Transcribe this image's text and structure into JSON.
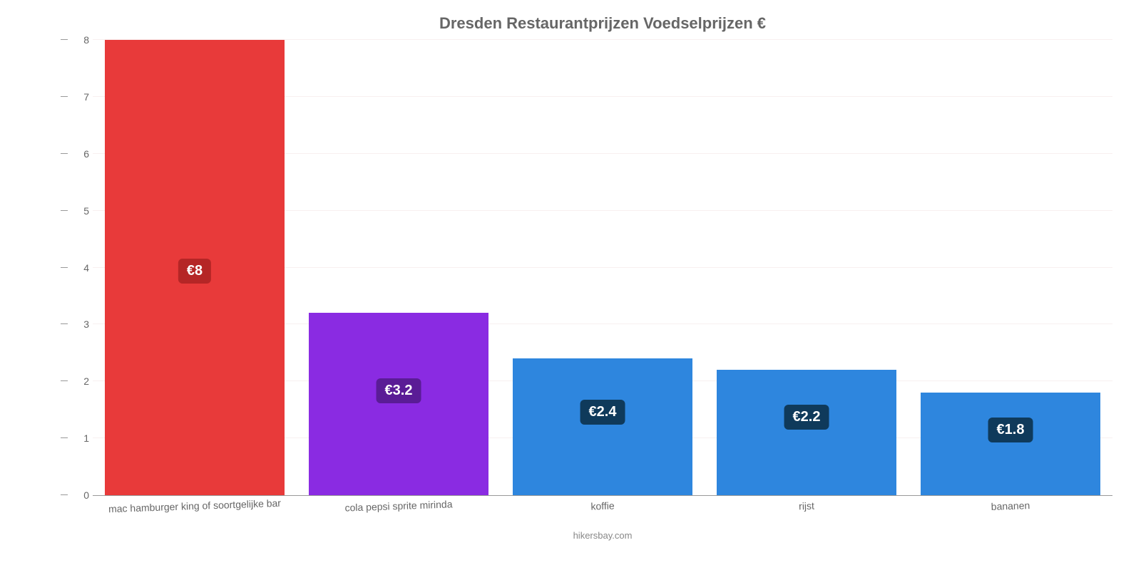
{
  "chart": {
    "type": "bar",
    "title": "Dresden Restaurantprijzen Voedselprijzen €",
    "title_color": "#666666",
    "title_fontsize": 22,
    "background_color": "#ffffff",
    "grid_color": "#f8f0f0",
    "axis_color": "#999999",
    "y_axis": {
      "min": 0,
      "max": 8,
      "ticks": [
        0,
        1,
        2,
        3,
        4,
        5,
        6,
        7,
        8
      ],
      "tick_fontsize": 14,
      "tick_color": "#666666"
    },
    "x_axis": {
      "label_fontsize": 14,
      "label_color": "#666666",
      "label_rotation_deg": -2
    },
    "bars": [
      {
        "category": "mac hamburger king of soortgelijke bar",
        "value": 8,
        "display_label": "€8",
        "color": "#e83a3a",
        "label_bg": "#b52626",
        "label_offset_from_top_pct": 48
      },
      {
        "category": "cola pepsi sprite mirinda",
        "value": 3.2,
        "display_label": "€3.2",
        "color": "#8a2be2",
        "label_bg": "#5a1c96",
        "label_offset_from_top_pct": 36
      },
      {
        "category": "koffie",
        "value": 2.4,
        "display_label": "€2.4",
        "color": "#2e86de",
        "label_bg": "#0f3a5b",
        "label_offset_from_top_pct": 30
      },
      {
        "category": "rijst",
        "value": 2.2,
        "display_label": "€2.2",
        "color": "#2e86de",
        "label_bg": "#0f3a5b",
        "label_offset_from_top_pct": 28
      },
      {
        "category": "bananen",
        "value": 1.8,
        "display_label": "€1.8",
        "color": "#2e86de",
        "label_bg": "#0f3a5b",
        "label_offset_from_top_pct": 24
      }
    ],
    "bar_width_pct": 88,
    "value_label": {
      "fontsize": 20,
      "text_color": "#ffffff",
      "border_radius": 6
    },
    "attribution": "hikersbay.com",
    "attribution_color": "#888888",
    "attribution_fontsize": 13
  }
}
